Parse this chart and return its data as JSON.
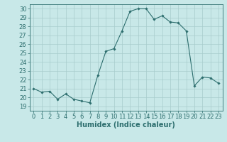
{
  "x": [
    0,
    1,
    2,
    3,
    4,
    5,
    6,
    7,
    8,
    9,
    10,
    11,
    12,
    13,
    14,
    15,
    16,
    17,
    18,
    19,
    20,
    21,
    22,
    23
  ],
  "y": [
    21.0,
    20.6,
    20.7,
    19.8,
    20.4,
    19.8,
    19.6,
    19.4,
    22.5,
    25.2,
    25.5,
    27.5,
    29.7,
    30.0,
    30.0,
    28.8,
    29.2,
    28.5,
    28.4,
    27.5,
    21.3,
    22.3,
    22.2,
    21.6
  ],
  "line_color": "#2d6e6e",
  "marker": "D",
  "marker_size": 1.8,
  "bg_color": "#c8e8e8",
  "grid_color": "#a8cccc",
  "xlabel": "Humidex (Indice chaleur)",
  "xlim": [
    -0.5,
    23.5
  ],
  "ylim": [
    18.5,
    30.5
  ],
  "yticks": [
    19,
    20,
    21,
    22,
    23,
    24,
    25,
    26,
    27,
    28,
    29,
    30
  ],
  "xticks": [
    0,
    1,
    2,
    3,
    4,
    5,
    6,
    7,
    8,
    9,
    10,
    11,
    12,
    13,
    14,
    15,
    16,
    17,
    18,
    19,
    20,
    21,
    22,
    23
  ],
  "label_fontsize": 7,
  "tick_fontsize": 6
}
